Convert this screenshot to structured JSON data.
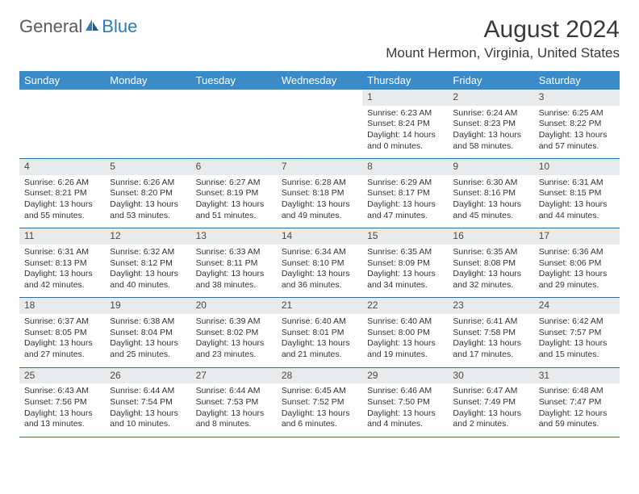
{
  "logo": {
    "text_general": "General",
    "text_blue": "Blue"
  },
  "header": {
    "month_title": "August 2024",
    "location": "Mount Hermon, Virginia, United States"
  },
  "colors": {
    "header_bg": "#3b8bc9",
    "header_text": "#ffffff",
    "daynum_bg": "#e9eaeb",
    "row_border": "#2b6da8",
    "logo_gray": "#5a5a5a",
    "logo_blue": "#2b7bbf"
  },
  "weekdays": [
    "Sunday",
    "Monday",
    "Tuesday",
    "Wednesday",
    "Thursday",
    "Friday",
    "Saturday"
  ],
  "weeks": [
    [
      {
        "n": "",
        "lines": []
      },
      {
        "n": "",
        "lines": []
      },
      {
        "n": "",
        "lines": []
      },
      {
        "n": "",
        "lines": []
      },
      {
        "n": "1",
        "lines": [
          "Sunrise: 6:23 AM",
          "Sunset: 8:24 PM",
          "Daylight: 14 hours and 0 minutes."
        ]
      },
      {
        "n": "2",
        "lines": [
          "Sunrise: 6:24 AM",
          "Sunset: 8:23 PM",
          "Daylight: 13 hours and 58 minutes."
        ]
      },
      {
        "n": "3",
        "lines": [
          "Sunrise: 6:25 AM",
          "Sunset: 8:22 PM",
          "Daylight: 13 hours and 57 minutes."
        ]
      }
    ],
    [
      {
        "n": "4",
        "lines": [
          "Sunrise: 6:26 AM",
          "Sunset: 8:21 PM",
          "Daylight: 13 hours and 55 minutes."
        ]
      },
      {
        "n": "5",
        "lines": [
          "Sunrise: 6:26 AM",
          "Sunset: 8:20 PM",
          "Daylight: 13 hours and 53 minutes."
        ]
      },
      {
        "n": "6",
        "lines": [
          "Sunrise: 6:27 AM",
          "Sunset: 8:19 PM",
          "Daylight: 13 hours and 51 minutes."
        ]
      },
      {
        "n": "7",
        "lines": [
          "Sunrise: 6:28 AM",
          "Sunset: 8:18 PM",
          "Daylight: 13 hours and 49 minutes."
        ]
      },
      {
        "n": "8",
        "lines": [
          "Sunrise: 6:29 AM",
          "Sunset: 8:17 PM",
          "Daylight: 13 hours and 47 minutes."
        ]
      },
      {
        "n": "9",
        "lines": [
          "Sunrise: 6:30 AM",
          "Sunset: 8:16 PM",
          "Daylight: 13 hours and 45 minutes."
        ]
      },
      {
        "n": "10",
        "lines": [
          "Sunrise: 6:31 AM",
          "Sunset: 8:15 PM",
          "Daylight: 13 hours and 44 minutes."
        ]
      }
    ],
    [
      {
        "n": "11",
        "lines": [
          "Sunrise: 6:31 AM",
          "Sunset: 8:13 PM",
          "Daylight: 13 hours and 42 minutes."
        ]
      },
      {
        "n": "12",
        "lines": [
          "Sunrise: 6:32 AM",
          "Sunset: 8:12 PM",
          "Daylight: 13 hours and 40 minutes."
        ]
      },
      {
        "n": "13",
        "lines": [
          "Sunrise: 6:33 AM",
          "Sunset: 8:11 PM",
          "Daylight: 13 hours and 38 minutes."
        ]
      },
      {
        "n": "14",
        "lines": [
          "Sunrise: 6:34 AM",
          "Sunset: 8:10 PM",
          "Daylight: 13 hours and 36 minutes."
        ]
      },
      {
        "n": "15",
        "lines": [
          "Sunrise: 6:35 AM",
          "Sunset: 8:09 PM",
          "Daylight: 13 hours and 34 minutes."
        ]
      },
      {
        "n": "16",
        "lines": [
          "Sunrise: 6:35 AM",
          "Sunset: 8:08 PM",
          "Daylight: 13 hours and 32 minutes."
        ]
      },
      {
        "n": "17",
        "lines": [
          "Sunrise: 6:36 AM",
          "Sunset: 8:06 PM",
          "Daylight: 13 hours and 29 minutes."
        ]
      }
    ],
    [
      {
        "n": "18",
        "lines": [
          "Sunrise: 6:37 AM",
          "Sunset: 8:05 PM",
          "Daylight: 13 hours and 27 minutes."
        ]
      },
      {
        "n": "19",
        "lines": [
          "Sunrise: 6:38 AM",
          "Sunset: 8:04 PM",
          "Daylight: 13 hours and 25 minutes."
        ]
      },
      {
        "n": "20",
        "lines": [
          "Sunrise: 6:39 AM",
          "Sunset: 8:02 PM",
          "Daylight: 13 hours and 23 minutes."
        ]
      },
      {
        "n": "21",
        "lines": [
          "Sunrise: 6:40 AM",
          "Sunset: 8:01 PM",
          "Daylight: 13 hours and 21 minutes."
        ]
      },
      {
        "n": "22",
        "lines": [
          "Sunrise: 6:40 AM",
          "Sunset: 8:00 PM",
          "Daylight: 13 hours and 19 minutes."
        ]
      },
      {
        "n": "23",
        "lines": [
          "Sunrise: 6:41 AM",
          "Sunset: 7:58 PM",
          "Daylight: 13 hours and 17 minutes."
        ]
      },
      {
        "n": "24",
        "lines": [
          "Sunrise: 6:42 AM",
          "Sunset: 7:57 PM",
          "Daylight: 13 hours and 15 minutes."
        ]
      }
    ],
    [
      {
        "n": "25",
        "lines": [
          "Sunrise: 6:43 AM",
          "Sunset: 7:56 PM",
          "Daylight: 13 hours and 13 minutes."
        ]
      },
      {
        "n": "26",
        "lines": [
          "Sunrise: 6:44 AM",
          "Sunset: 7:54 PM",
          "Daylight: 13 hours and 10 minutes."
        ]
      },
      {
        "n": "27",
        "lines": [
          "Sunrise: 6:44 AM",
          "Sunset: 7:53 PM",
          "Daylight: 13 hours and 8 minutes."
        ]
      },
      {
        "n": "28",
        "lines": [
          "Sunrise: 6:45 AM",
          "Sunset: 7:52 PM",
          "Daylight: 13 hours and 6 minutes."
        ]
      },
      {
        "n": "29",
        "lines": [
          "Sunrise: 6:46 AM",
          "Sunset: 7:50 PM",
          "Daylight: 13 hours and 4 minutes."
        ]
      },
      {
        "n": "30",
        "lines": [
          "Sunrise: 6:47 AM",
          "Sunset: 7:49 PM",
          "Daylight: 13 hours and 2 minutes."
        ]
      },
      {
        "n": "31",
        "lines": [
          "Sunrise: 6:48 AM",
          "Sunset: 7:47 PM",
          "Daylight: 12 hours and 59 minutes."
        ]
      }
    ]
  ]
}
